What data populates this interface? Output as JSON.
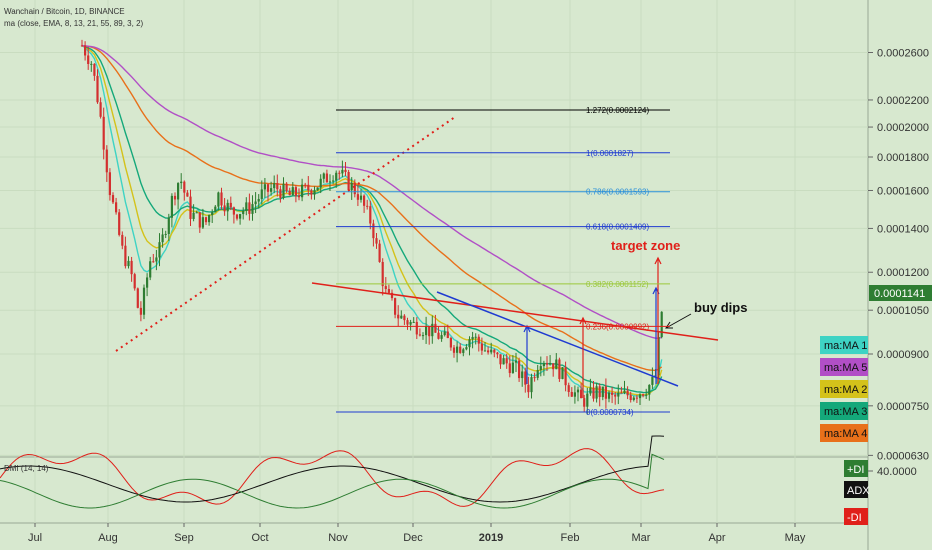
{
  "header": {
    "title": "Wanchain / Bitcoin, 1D, BINANCE",
    "ma_line": "ma (close, EMA, 8, 13, 21, 55, 89, 3, 2)",
    "dmi_line": "DMI (14, 14)"
  },
  "chart_data": {
    "type": "candlestick",
    "x_ticks": [
      "Jul",
      "Aug",
      "Sep",
      "Oct",
      "Nov",
      "Dec",
      "2019",
      "Feb",
      "Mar",
      "Apr",
      "May"
    ],
    "y_ticks": [
      "0.0002600",
      "0.0002200",
      "0.0002000",
      "0.0001800",
      "0.0001600",
      "0.0001400",
      "0.0001200",
      "0.0001050",
      "0.0000900",
      "0.0000750",
      "0.0000630"
    ],
    "y_scale": "log",
    "price_label": "0.0001141",
    "fib_levels": [
      {
        "label": "1.272(0.0002124)",
        "value": 0.0002124,
        "color": "#000000"
      },
      {
        "label": "1(0.0001827)",
        "value": 0.0001827,
        "color": "#1f3bd1"
      },
      {
        "label": "0.786(0.0001593)",
        "value": 0.0001593,
        "color": "#2a8fd9"
      },
      {
        "label": "0.618(0.0001409)",
        "value": 0.0001409,
        "color": "#1f3bd1"
      },
      {
        "label": "0.382(0.0001152)",
        "value": 0.0001152,
        "color": "#9bc83a"
      },
      {
        "label": "0.236(0.0000992)",
        "value": 9.92e-05,
        "color": "#e0201a"
      },
      {
        "label": "0(0.0000734)",
        "value": 7.34e-05,
        "color": "#1f3bd1"
      }
    ],
    "annotations": [
      "target zone",
      "buy dips"
    ],
    "ma_legend": [
      {
        "label": "ma:MA 1",
        "color": "#3ed3c4"
      },
      {
        "label": "ma:MA 5",
        "color": "#b14fc6"
      },
      {
        "label": "ma:MA 2",
        "color": "#d4c21a"
      },
      {
        "label": "ma:MA 3",
        "color": "#14a87a"
      },
      {
        "label": "ma:MA 4",
        "color": "#e8701a"
      }
    ],
    "dmi": {
      "value_label": "40.0000",
      "legend": [
        {
          "label": "+DI",
          "color": "#2e7d32"
        },
        {
          "label": "ADX",
          "color": "#111111"
        },
        {
          "label": "-DI",
          "color": "#e0201a"
        }
      ]
    },
    "colors": {
      "bull": "#2e7d32",
      "bear": "#d32f2f"
    }
  }
}
